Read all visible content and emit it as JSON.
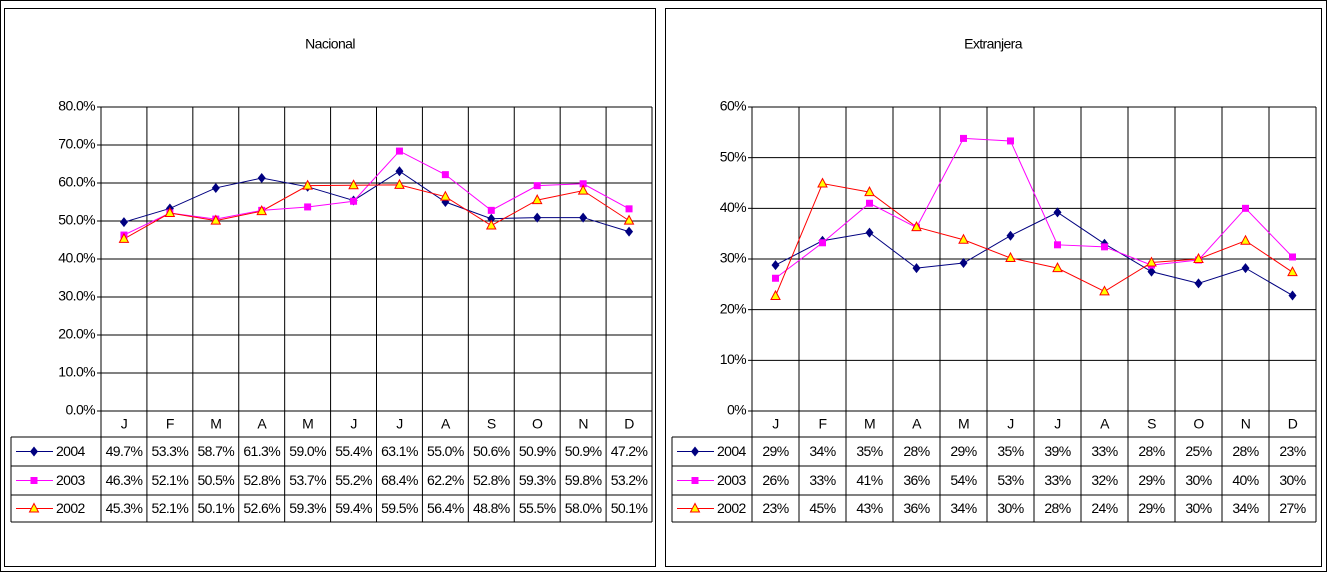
{
  "chart_data": [
    {
      "type": "line",
      "title": "Nacional",
      "categories": [
        "J",
        "F",
        "M",
        "A",
        "M",
        "J",
        "J",
        "A",
        "S",
        "O",
        "N",
        "D"
      ],
      "ylim": [
        0,
        80
      ],
      "yticks": [
        {
          "value": 0,
          "label": "0.0%"
        },
        {
          "value": 10,
          "label": "10.0%"
        },
        {
          "value": 20,
          "label": "20.0%"
        },
        {
          "value": 30,
          "label": "30.0%"
        },
        {
          "value": 40,
          "label": "40.0%"
        },
        {
          "value": 50,
          "label": "50.0%"
        },
        {
          "value": 60,
          "label": "60.0%"
        },
        {
          "value": 70,
          "label": "70.0%"
        },
        {
          "value": 80,
          "label": "80.0%"
        }
      ],
      "grid": true,
      "series": [
        {
          "name": "2004",
          "color": "#000080",
          "marker": "diamond",
          "values": [
            49.7,
            53.3,
            58.7,
            61.3,
            59.0,
            55.4,
            63.1,
            55.0,
            50.6,
            50.9,
            50.9,
            47.2
          ],
          "value_labels": [
            "49.7%",
            "53.3%",
            "58.7%",
            "61.3%",
            "59.0%",
            "55.4%",
            "63.1%",
            "55.0%",
            "50.6%",
            "50.9%",
            "50.9%",
            "47.2%"
          ]
        },
        {
          "name": "2003",
          "color": "#ff00ff",
          "marker": "square",
          "values": [
            46.3,
            52.1,
            50.5,
            52.8,
            53.7,
            55.2,
            68.4,
            62.2,
            52.8,
            59.3,
            59.8,
            53.2
          ],
          "value_labels": [
            "46.3%",
            "52.1%",
            "50.5%",
            "52.8%",
            "53.7%",
            "55.2%",
            "68.4%",
            "62.2%",
            "52.8%",
            "59.3%",
            "59.8%",
            "53.2%"
          ]
        },
        {
          "name": "2002",
          "color": "#ff0000",
          "marker": "triangle",
          "values": [
            45.3,
            52.1,
            50.1,
            52.6,
            59.3,
            59.4,
            59.5,
            56.4,
            48.8,
            55.5,
            58.0,
            50.1
          ],
          "value_labels": [
            "45.3%",
            "52.1%",
            "50.1%",
            "52.6%",
            "59.3%",
            "59.4%",
            "59.5%",
            "56.4%",
            "48.8%",
            "55.5%",
            "58.0%",
            "50.1%"
          ]
        }
      ]
    },
    {
      "type": "line",
      "title": "Extranjera",
      "categories": [
        "J",
        "F",
        "M",
        "A",
        "M",
        "J",
        "J",
        "A",
        "S",
        "O",
        "N",
        "D"
      ],
      "ylim": [
        0,
        60
      ],
      "yticks": [
        {
          "value": 0,
          "label": "0%"
        },
        {
          "value": 10,
          "label": "10%"
        },
        {
          "value": 20,
          "label": "20%"
        },
        {
          "value": 30,
          "label": "30%"
        },
        {
          "value": 40,
          "label": "40%"
        },
        {
          "value": 50,
          "label": "50%"
        },
        {
          "value": 60,
          "label": "60%"
        }
      ],
      "grid": true,
      "series": [
        {
          "name": "2004",
          "color": "#000080",
          "marker": "diamond",
          "values": [
            28.8,
            33.6,
            35.2,
            28.2,
            29.2,
            34.6,
            39.2,
            33.0,
            27.5,
            25.2,
            28.2,
            22.8
          ],
          "value_labels": [
            "29%",
            "34%",
            "35%",
            "28%",
            "29%",
            "35%",
            "39%",
            "33%",
            "28%",
            "25%",
            "28%",
            "23%"
          ]
        },
        {
          "name": "2003",
          "color": "#ff00ff",
          "marker": "square",
          "values": [
            26.2,
            33.2,
            41.0,
            36.2,
            53.8,
            53.3,
            32.8,
            32.4,
            28.8,
            29.8,
            40.0,
            30.4
          ],
          "value_labels": [
            "26%",
            "33%",
            "41%",
            "36%",
            "54%",
            "53%",
            "33%",
            "32%",
            "29%",
            "30%",
            "40%",
            "30%"
          ]
        },
        {
          "name": "2002",
          "color": "#ff0000",
          "marker": "triangle",
          "values": [
            22.7,
            44.9,
            43.2,
            36.3,
            33.8,
            30.2,
            28.2,
            23.6,
            29.3,
            30.0,
            33.6,
            27.4
          ],
          "value_labels": [
            "23%",
            "45%",
            "43%",
            "36%",
            "34%",
            "30%",
            "28%",
            "24%",
            "29%",
            "30%",
            "34%",
            "27%"
          ]
        }
      ]
    }
  ]
}
